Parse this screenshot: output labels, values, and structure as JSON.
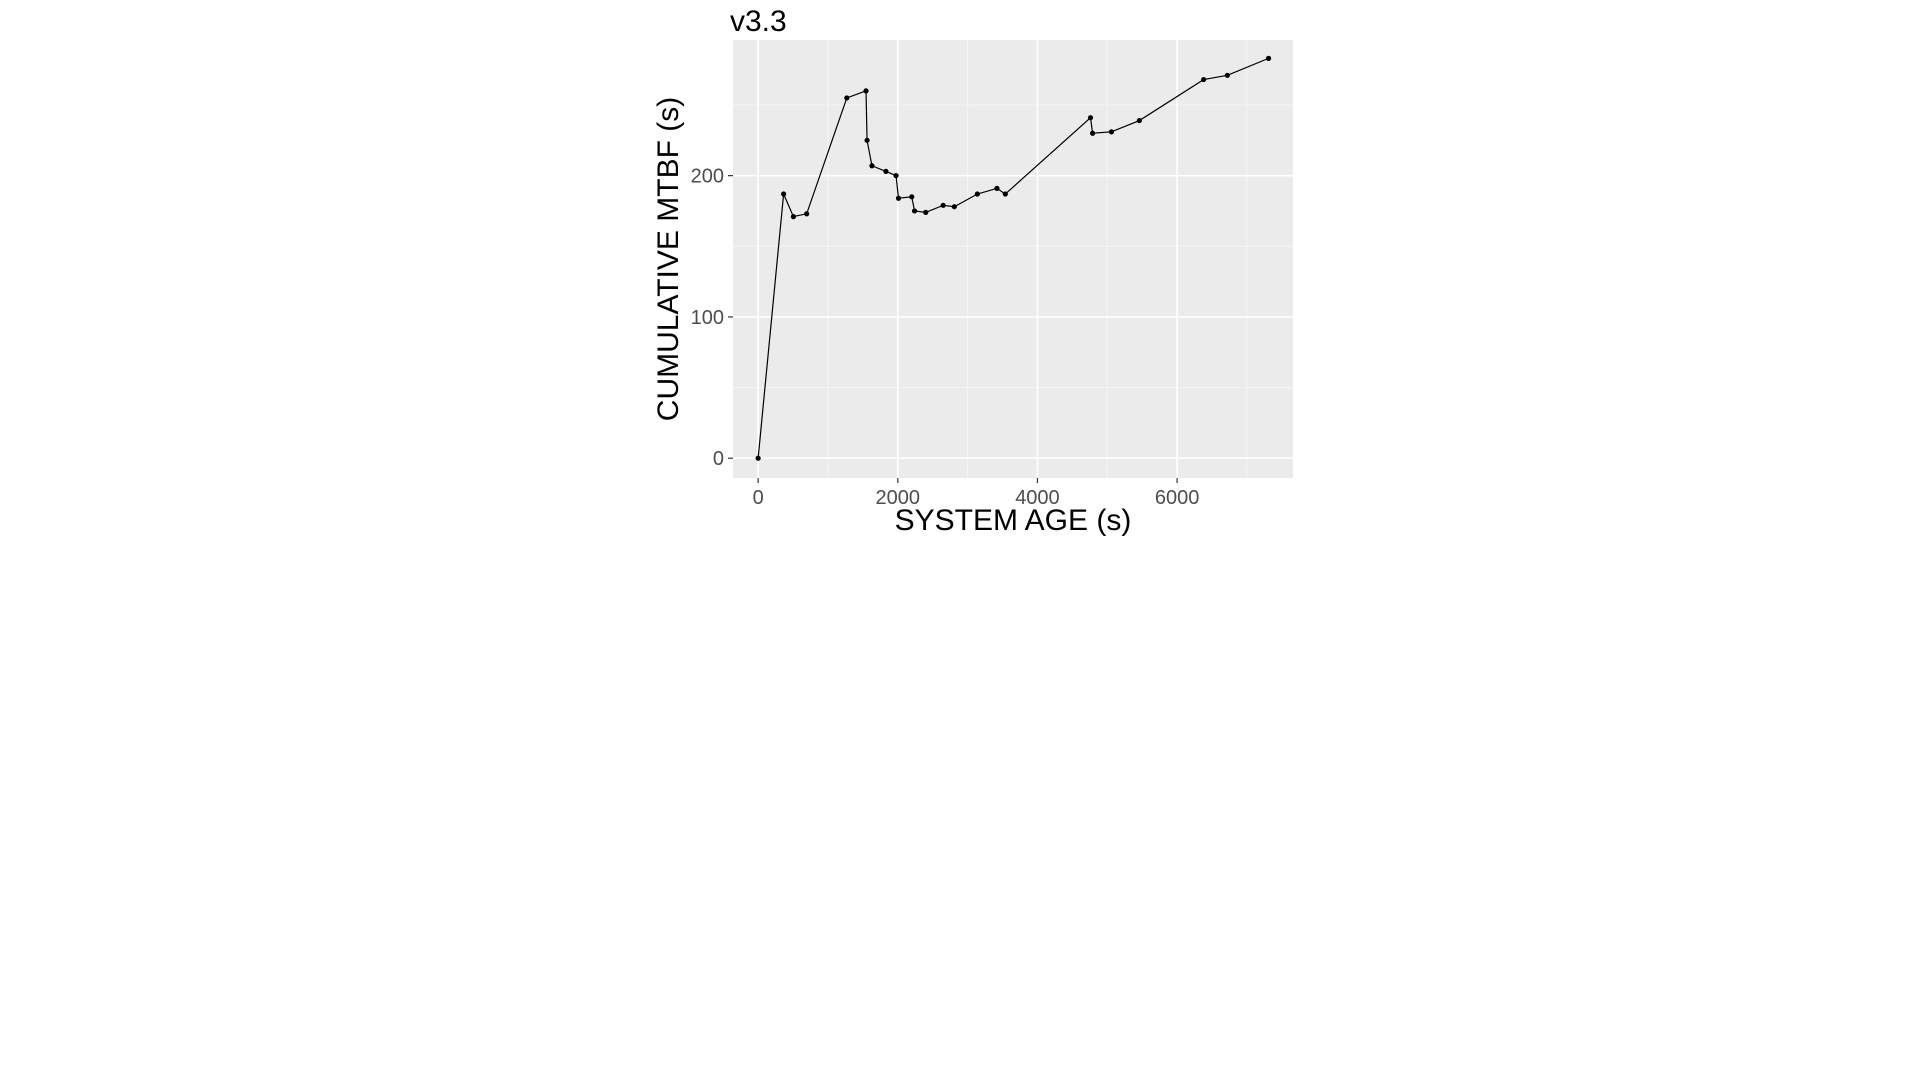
{
  "chart_data": {
    "type": "line",
    "title": "v3.3",
    "xlabel": "SYSTEM AGE (s)",
    "ylabel": "CUMULATIVE MTBF (s)",
    "x_ticks": [
      0,
      2000,
      4000,
      6000
    ],
    "y_ticks": [
      0,
      100,
      200
    ],
    "xlim": [
      -360,
      7660
    ],
    "ylim": [
      -14,
      296
    ],
    "grid": true,
    "legend": "none",
    "colors": {
      "panel_background": "#ebebeb",
      "grid_major": "#ffffff",
      "grid_minor": "#f5f5f5",
      "line": "#000000",
      "tick_label": "#4d4d4d",
      "tick_mark": "#333333"
    },
    "series": [
      {
        "x": [
          0,
          365,
          505,
          695,
          1270,
          1545,
          1560,
          1630,
          1830,
          1975,
          2010,
          2200,
          2240,
          2400,
          2650,
          2810,
          3140,
          3420,
          3540,
          4760,
          4790,
          5060,
          5460,
          6380,
          6720,
          7310
        ],
        "y": [
          0,
          187,
          171,
          173,
          255,
          260,
          225,
          207,
          203,
          200,
          184,
          185,
          175,
          174,
          179,
          178,
          187,
          191,
          187,
          241,
          230,
          231,
          239,
          268,
          271,
          283
        ]
      }
    ]
  }
}
